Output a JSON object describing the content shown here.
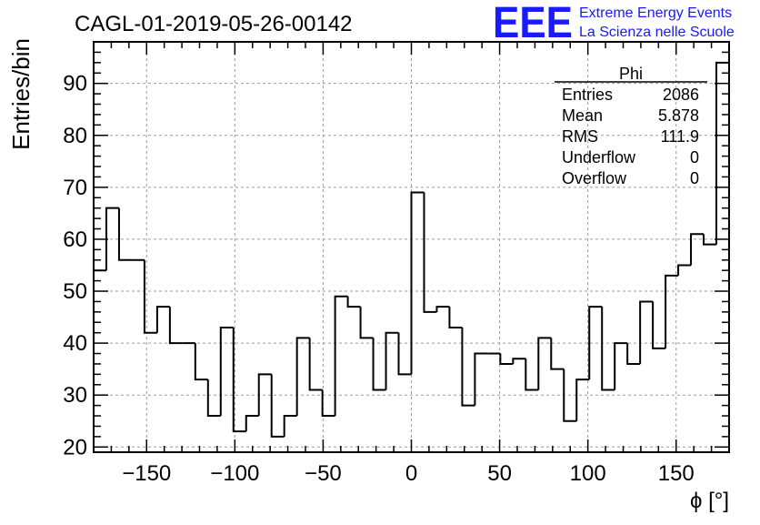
{
  "chart_data": {
    "type": "histogram",
    "title": "CAGL-01-2019-05-26-00142",
    "xlabel": "ϕ [°]",
    "ylabel": "Entries/bin",
    "xlim": [
      -180,
      180
    ],
    "ylim": [
      19,
      98
    ],
    "grid": true,
    "xticks": [
      -150,
      -100,
      -50,
      0,
      50,
      100,
      150
    ],
    "yticks": [
      20,
      30,
      40,
      50,
      60,
      70,
      80,
      90
    ],
    "bin_width": 7.2,
    "series": [
      {
        "name": "Phi",
        "values": [
          54,
          66,
          56,
          56,
          42,
          47,
          40,
          40,
          33,
          26,
          43,
          23,
          26,
          34,
          22,
          26,
          41,
          31,
          26,
          49,
          47,
          41,
          31,
          42,
          34,
          69,
          46,
          47,
          43,
          28,
          38,
          38,
          36,
          37,
          31,
          41,
          35,
          25,
          33,
          47,
          31,
          40,
          36,
          48,
          39,
          53,
          55,
          61,
          59,
          94
        ]
      }
    ]
  },
  "stats_box": {
    "title": "Phi",
    "rows": [
      {
        "label": "Entries",
        "value": "2086"
      },
      {
        "label": "Mean",
        "value": "5.878"
      },
      {
        "label": "RMS",
        "value": "111.9"
      },
      {
        "label": "Underflow",
        "value": "0"
      },
      {
        "label": "Overflow",
        "value": "0"
      }
    ]
  },
  "logo": {
    "text": "EEE",
    "line1": "Extreme Energy Events",
    "line2": "La Scienza nelle Scuole",
    "color": "#1a1aff"
  }
}
